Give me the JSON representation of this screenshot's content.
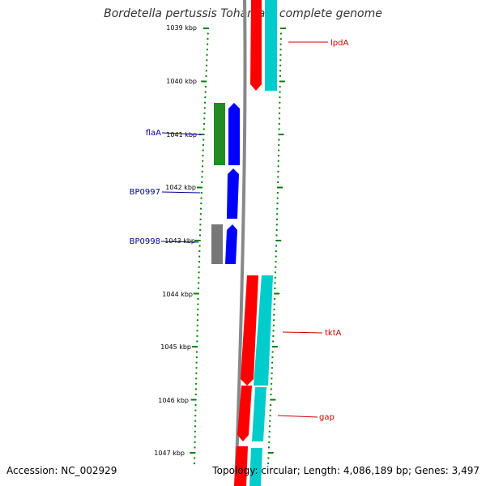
{
  "title": "Bordetella pertussis Tohama I, complete genome",
  "footer": {
    "accession": "Accession: NC_002929",
    "stats": "Topology: circular; Length: 4,086,189 bp; Genes: 3,497"
  },
  "colors": {
    "forward_cds": "#ff0000",
    "forward_cds_alt": "#00cccc",
    "reverse_cds_green": "#228b22",
    "reverse_cds_blue": "#0000ff",
    "reverse_cds_gray": "#777777",
    "tick": "#008000",
    "backbone": "#888888",
    "label_forward": "#cc0000",
    "label_reverse": "#000099"
  },
  "ticks": [
    {
      "label": "1039 kbp"
    },
    {
      "label": "1040 kbp"
    },
    {
      "label": "1041 kbp"
    },
    {
      "label": "1042 kbp"
    },
    {
      "label": "1043 kbp"
    },
    {
      "label": "1044 kbp"
    },
    {
      "label": "1045 kbp"
    },
    {
      "label": "1046 kbp"
    },
    {
      "label": "1047 kbp"
    }
  ],
  "genes": [
    {
      "name": "lpdA",
      "strand": "forward"
    },
    {
      "name": "flaA",
      "strand": "reverse"
    },
    {
      "name": "BP0997",
      "strand": "reverse"
    },
    {
      "name": "BP0998",
      "strand": "reverse"
    },
    {
      "name": "tktA",
      "strand": "forward"
    },
    {
      "name": "gap",
      "strand": "forward"
    }
  ]
}
